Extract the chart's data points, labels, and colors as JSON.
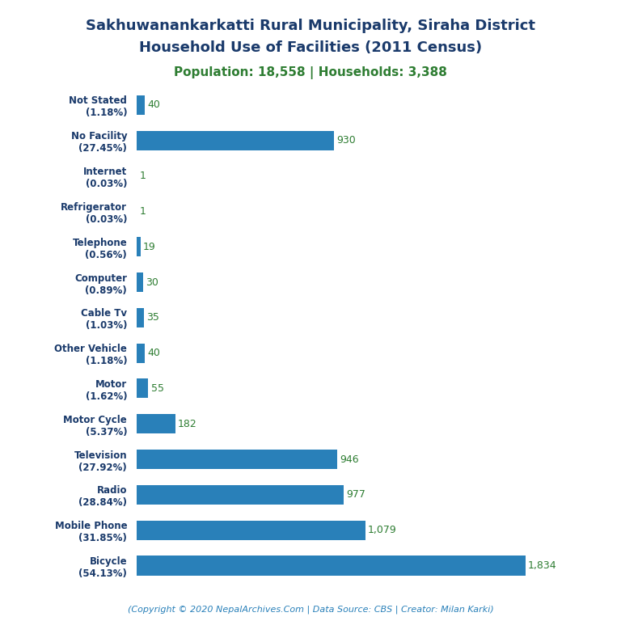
{
  "title_line1": "Sakhuwanankarkatti Rural Municipality, Siraha District",
  "title_line2": "Household Use of Facilities (2011 Census)",
  "subtitle": "Population: 18,558 | Households: 3,388",
  "footer": "(Copyright © 2020 NepalArchives.Com | Data Source: CBS | Creator: Milan Karki)",
  "categories": [
    "Bicycle\n(54.13%)",
    "Mobile Phone\n(31.85%)",
    "Radio\n(28.84%)",
    "Television\n(27.92%)",
    "Motor Cycle\n(5.37%)",
    "Motor\n(1.62%)",
    "Other Vehicle\n(1.18%)",
    "Cable Tv\n(1.03%)",
    "Computer\n(0.89%)",
    "Telephone\n(0.56%)",
    "Refrigerator\n(0.03%)",
    "Internet\n(0.03%)",
    "No Facility\n(27.45%)",
    "Not Stated\n(1.18%)"
  ],
  "values": [
    1834,
    1079,
    977,
    946,
    182,
    55,
    40,
    35,
    30,
    19,
    1,
    1,
    930,
    40
  ],
  "bar_color": "#2980b9",
  "title_color": "#1a3a6b",
  "subtitle_color": "#2e7d32",
  "value_color": "#2e7d32",
  "footer_color": "#2980b9",
  "background_color": "#ffffff",
  "xlim": [
    0,
    2050
  ]
}
